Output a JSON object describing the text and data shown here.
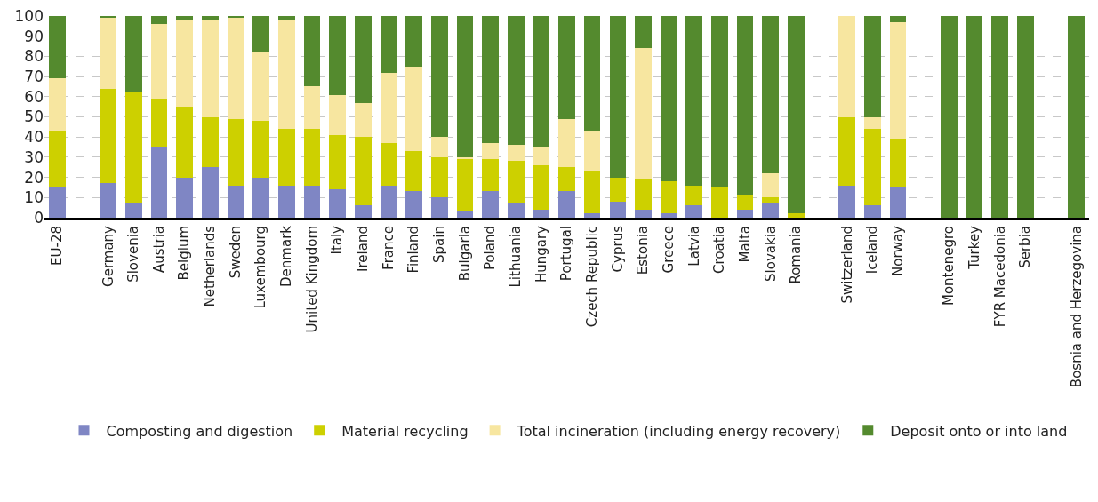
{
  "chart_data": {
    "type": "bar",
    "stacked": true,
    "categories": [
      "EU-28",
      null,
      "Germany",
      "Slovenia",
      "Austria",
      "Belgium",
      "Netherlands",
      "Sweden",
      "Luxembourg",
      "Denmark",
      "United Kingdom",
      "Italy",
      "Ireland",
      "France",
      "Finland",
      "Spain",
      "Bulgaria",
      "Poland",
      "Lithuania",
      "Hungary",
      "Portugal",
      "Czech Republic",
      "Cyprus",
      "Estonia",
      "Greece",
      "Latvia",
      "Croatia",
      "Malta",
      "Slovakia",
      "Romania",
      null,
      "Switzerland",
      "Iceland",
      "Norway",
      null,
      "Montenegro",
      "Turkey",
      "FYR Macedonia",
      "Serbia",
      null,
      "Bosnia and Herzegovina"
    ],
    "series": [
      {
        "name": "Composting and digestion",
        "color": "#7f86c4",
        "values": [
          15,
          null,
          17,
          7,
          35,
          20,
          25,
          16,
          20,
          16,
          16,
          14,
          6,
          16,
          13,
          10,
          3,
          13,
          7,
          4,
          13,
          2,
          8,
          4,
          2,
          6,
          0,
          4,
          7,
          0,
          null,
          16,
          6,
          15,
          null,
          0,
          0,
          0,
          0,
          null,
          0
        ]
      },
      {
        "name": "Material recycling",
        "color": "#cdd000",
        "values": [
          28,
          null,
          47,
          55,
          24,
          35,
          25,
          33,
          28,
          28,
          28,
          27,
          34,
          21,
          20,
          20,
          26,
          16,
          21,
          22,
          12,
          21,
          12,
          15,
          16,
          10,
          15,
          7,
          3,
          2,
          null,
          34,
          38,
          24,
          null,
          0,
          0,
          0,
          0,
          null,
          0
        ]
      },
      {
        "name": "Total incineration (including energy recovery)",
        "color": "#f7e6a0",
        "values": [
          26,
          null,
          35,
          0,
          37,
          43,
          48,
          50,
          34,
          54,
          21,
          20,
          17,
          35,
          42,
          10,
          1,
          8,
          8,
          9,
          24,
          20,
          0,
          65,
          0,
          0,
          0,
          0,
          12,
          0,
          null,
          50,
          6,
          58,
          null,
          0,
          0,
          0,
          0,
          null,
          0
        ]
      },
      {
        "name": "Deposit onto or into land",
        "color": "#548a2e",
        "values": [
          31,
          null,
          1,
          38,
          4,
          2,
          2,
          1,
          18,
          2,
          35,
          39,
          43,
          28,
          25,
          60,
          70,
          63,
          64,
          65,
          51,
          57,
          80,
          16,
          82,
          84,
          85,
          89,
          78,
          98,
          null,
          0,
          50,
          3,
          null,
          100,
          100,
          100,
          100,
          null,
          100
        ]
      }
    ],
    "ylim": [
      0,
      100
    ],
    "yticks": [
      0,
      10,
      20,
      30,
      40,
      50,
      60,
      70,
      80,
      90,
      100
    ],
    "grid": "y",
    "legend": "bottom"
  }
}
